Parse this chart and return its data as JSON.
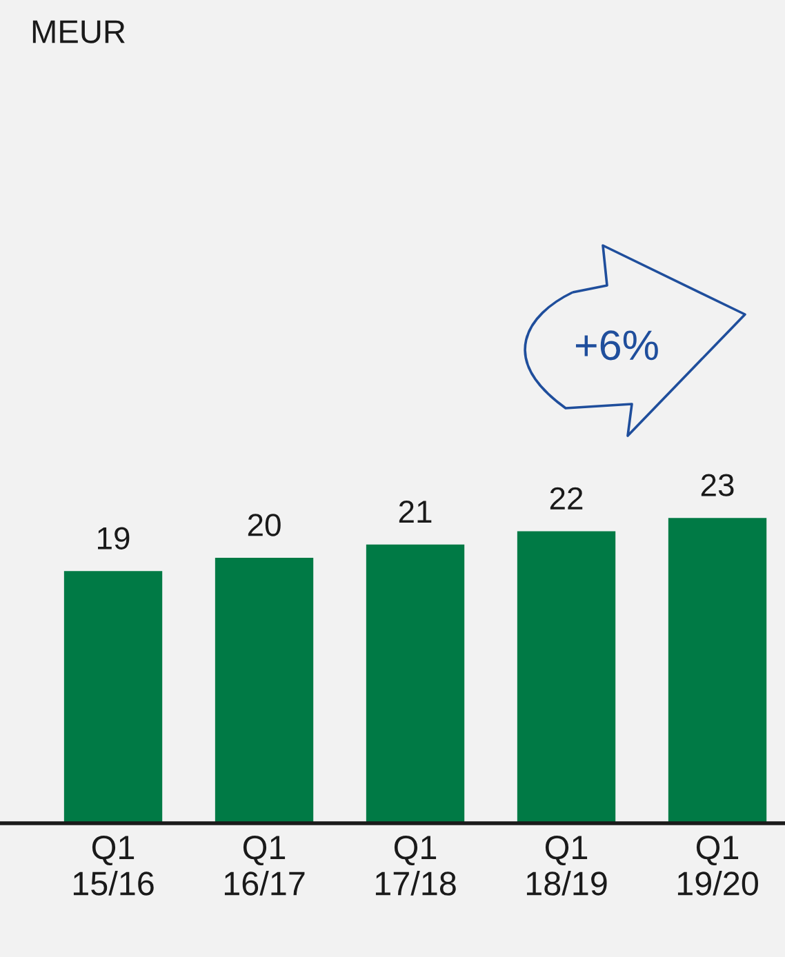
{
  "chart_data": {
    "type": "bar",
    "title": "MEUR",
    "categories": [
      "Q1\n15/16",
      "Q1\n16/17",
      "Q1\n17/18",
      "Q1\n18/19",
      "Q1\n19/20"
    ],
    "values": [
      19,
      20,
      21,
      22,
      23
    ],
    "color": "#007a45",
    "data_labels": true,
    "annotations": [
      "+6%"
    ],
    "grid": false,
    "legend": false
  }
}
